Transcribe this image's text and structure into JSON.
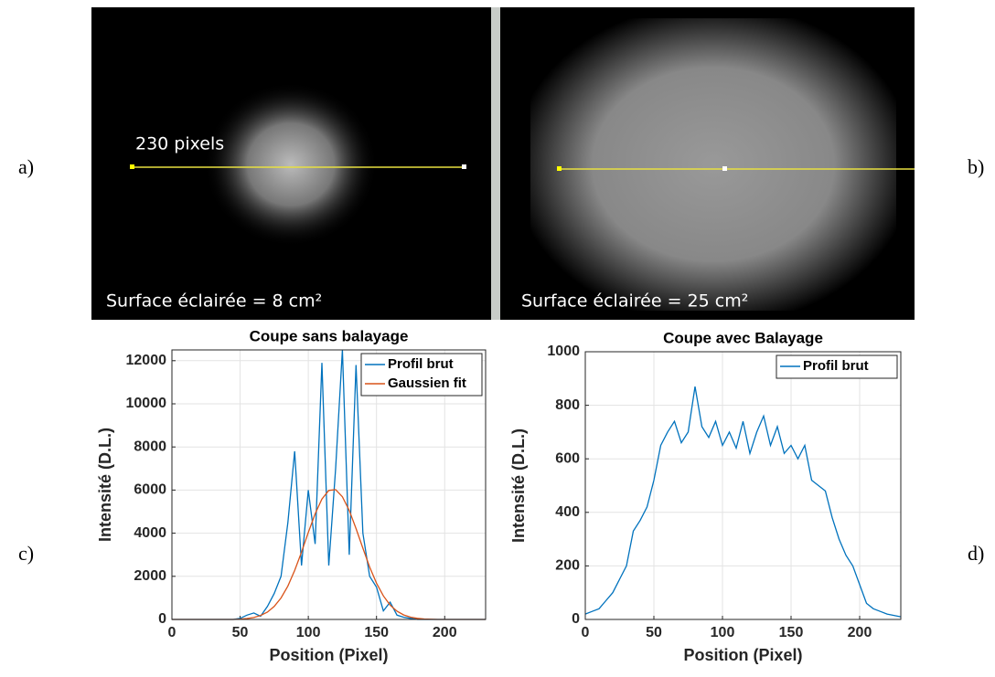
{
  "panel_labels": [
    "a)",
    "b)",
    "c)",
    "d)"
  ],
  "images": [
    {
      "annotation": "230 pixels",
      "caption": "Surface éclairée = 8 cm²"
    },
    {
      "caption": "Surface éclairée = 25 cm²"
    }
  ],
  "chart_data": [
    {
      "type": "line",
      "title": "Coupe sans balayage",
      "x_label": "Position (Pixel)",
      "y_label": "Intensité (D.L.)",
      "x": [
        0,
        5,
        10,
        15,
        20,
        25,
        30,
        35,
        40,
        45,
        50,
        55,
        60,
        65,
        70,
        75,
        80,
        85,
        90,
        95,
        100,
        105,
        110,
        115,
        120,
        125,
        130,
        135,
        140,
        145,
        150,
        155,
        160,
        165,
        170,
        175,
        180,
        185,
        190,
        195,
        200,
        205,
        210,
        215,
        220,
        225,
        230
      ],
      "series": [
        {
          "name": "Profil brut",
          "color": "#0072BD",
          "values": [
            0,
            0,
            0,
            0,
            0,
            0,
            0,
            0,
            0,
            0,
            50,
            200,
            300,
            150,
            600,
            1200,
            2000,
            4500,
            7800,
            2500,
            6000,
            3500,
            11900,
            2500,
            7000,
            12500,
            3000,
            11800,
            4000,
            2000,
            1500,
            400,
            800,
            200,
            100,
            50,
            0,
            0,
            0,
            0,
            0,
            0,
            0,
            0,
            0,
            0,
            0
          ]
        },
        {
          "name": "Gaussien fit",
          "color": "#D95319",
          "values": [
            0,
            0,
            0,
            0,
            0,
            0,
            0,
            0,
            0,
            0,
            19,
            42,
            90,
            181,
            339,
            600,
            995,
            1550,
            2270,
            3124,
            4035,
            4897,
            5585,
            5983,
            6020,
            5690,
            5055,
            4216,
            3304,
            2433,
            1682,
            1092,
            666,
            382,
            206,
            104,
            50,
            22,
            9,
            0,
            0,
            0,
            0,
            0,
            0,
            0,
            0
          ]
        }
      ],
      "xlim": [
        0,
        230
      ],
      "xticks": [
        0,
        50,
        100,
        150,
        200
      ],
      "ylim": [
        0,
        12500
      ],
      "yticks": [
        0,
        2000,
        4000,
        6000,
        8000,
        10000,
        12000
      ],
      "grid": true,
      "legend": "northeast"
    },
    {
      "type": "line",
      "title": "Coupe avec Balayage",
      "x_label": "Position (Pixel)",
      "y_label": "Intensité (D.L.)",
      "x": [
        0,
        5,
        10,
        15,
        20,
        25,
        30,
        35,
        40,
        45,
        50,
        55,
        60,
        65,
        70,
        75,
        80,
        85,
        90,
        95,
        100,
        105,
        110,
        115,
        120,
        125,
        130,
        135,
        140,
        145,
        150,
        155,
        160,
        165,
        170,
        175,
        180,
        185,
        190,
        195,
        200,
        205,
        210,
        215,
        220,
        225,
        230
      ],
      "series": [
        {
          "name": "Profil brut",
          "color": "#0072BD",
          "values": [
            20,
            30,
            40,
            70,
            100,
            150,
            200,
            330,
            370,
            420,
            520,
            650,
            700,
            740,
            660,
            700,
            870,
            720,
            680,
            740,
            650,
            700,
            640,
            740,
            620,
            700,
            760,
            650,
            720,
            620,
            650,
            600,
            650,
            520,
            500,
            480,
            380,
            300,
            240,
            200,
            130,
            60,
            40,
            30,
            20,
            15,
            10
          ]
        }
      ],
      "xlim": [
        0,
        230
      ],
      "xticks": [
        0,
        50,
        100,
        150,
        200
      ],
      "ylim": [
        0,
        1000
      ],
      "yticks": [
        0,
        200,
        400,
        600,
        800,
        1000
      ],
      "grid": true,
      "legend": "northeast"
    }
  ]
}
